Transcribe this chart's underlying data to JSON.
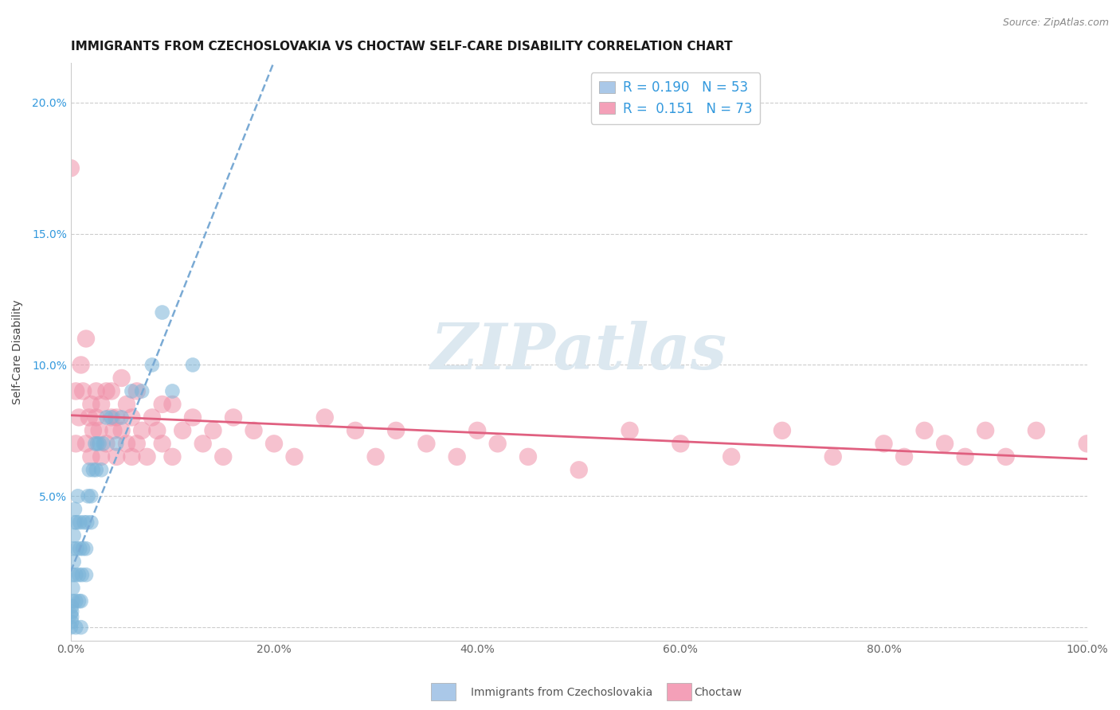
{
  "title": "IMMIGRANTS FROM CZECHOSLOVAKIA VS CHOCTAW SELF-CARE DISABILITY CORRELATION CHART",
  "source": "Source: ZipAtlas.com",
  "ylabel": "Self-Care Disability",
  "xlim": [
    0,
    1.0
  ],
  "ylim": [
    -0.005,
    0.215
  ],
  "xtick_vals": [
    0.0,
    0.2,
    0.4,
    0.6,
    0.8,
    1.0
  ],
  "xtick_labels": [
    "0.0%",
    "20.0%",
    "40.0%",
    "60.0%",
    "80.0%",
    "100.0%"
  ],
  "ytick_vals": [
    0.0,
    0.05,
    0.1,
    0.15,
    0.2
  ],
  "ytick_labels": [
    "",
    "5.0%",
    "10.0%",
    "15.0%",
    "20.0%"
  ],
  "blue_color": "#7ab4d8",
  "pink_color": "#f090a8",
  "blue_line_color": "#7aaad4",
  "pink_line_color": "#e06080",
  "grid_color": "#cccccc",
  "background": "#ffffff",
  "watermark": "ZIPatlas",
  "legend_blue_label": "R = 0.190   N = 53",
  "legend_pink_label": "R =  0.151   N = 73",
  "bottom_label_blue": "Immigrants from Czechoslovakia",
  "bottom_label_pink": "Choctaw",
  "blue_x": [
    0.0,
    0.0,
    0.001,
    0.001,
    0.001,
    0.001,
    0.002,
    0.002,
    0.002,
    0.003,
    0.003,
    0.003,
    0.004,
    0.004,
    0.005,
    0.005,
    0.005,
    0.006,
    0.006,
    0.007,
    0.008,
    0.008,
    0.009,
    0.009,
    0.01,
    0.01,
    0.011,
    0.012,
    0.013,
    0.015,
    0.015,
    0.016,
    0.017,
    0.018,
    0.02,
    0.02,
    0.022,
    0.024,
    0.025,
    0.026,
    0.028,
    0.03,
    0.032,
    0.035,
    0.04,
    0.045,
    0.05,
    0.06,
    0.07,
    0.08,
    0.09,
    0.1,
    0.12
  ],
  "blue_y": [
    0.0,
    0.005,
    0.002,
    0.004,
    0.006,
    0.008,
    0.01,
    0.015,
    0.02,
    0.025,
    0.03,
    0.035,
    0.04,
    0.045,
    0.0,
    0.01,
    0.02,
    0.03,
    0.04,
    0.05,
    0.01,
    0.02,
    0.03,
    0.04,
    0.0,
    0.01,
    0.02,
    0.03,
    0.04,
    0.02,
    0.03,
    0.04,
    0.05,
    0.06,
    0.04,
    0.05,
    0.06,
    0.07,
    0.06,
    0.07,
    0.07,
    0.06,
    0.07,
    0.08,
    0.08,
    0.07,
    0.08,
    0.09,
    0.09,
    0.1,
    0.12,
    0.09,
    0.1
  ],
  "pink_x": [
    0.0,
    0.005,
    0.005,
    0.008,
    0.01,
    0.012,
    0.015,
    0.015,
    0.018,
    0.02,
    0.02,
    0.022,
    0.025,
    0.025,
    0.028,
    0.03,
    0.03,
    0.035,
    0.035,
    0.04,
    0.04,
    0.042,
    0.045,
    0.045,
    0.05,
    0.05,
    0.055,
    0.055,
    0.06,
    0.06,
    0.065,
    0.065,
    0.07,
    0.075,
    0.08,
    0.085,
    0.09,
    0.09,
    0.1,
    0.1,
    0.11,
    0.12,
    0.13,
    0.14,
    0.15,
    0.16,
    0.18,
    0.2,
    0.22,
    0.25,
    0.28,
    0.3,
    0.32,
    0.35,
    0.38,
    0.4,
    0.42,
    0.45,
    0.5,
    0.55,
    0.6,
    0.65,
    0.7,
    0.75,
    0.8,
    0.82,
    0.84,
    0.86,
    0.88,
    0.9,
    0.92,
    0.95,
    1.0
  ],
  "pink_y": [
    0.175,
    0.07,
    0.09,
    0.08,
    0.1,
    0.09,
    0.07,
    0.11,
    0.08,
    0.085,
    0.065,
    0.075,
    0.08,
    0.09,
    0.075,
    0.065,
    0.085,
    0.07,
    0.09,
    0.08,
    0.09,
    0.075,
    0.065,
    0.08,
    0.075,
    0.095,
    0.07,
    0.085,
    0.08,
    0.065,
    0.09,
    0.07,
    0.075,
    0.065,
    0.08,
    0.075,
    0.07,
    0.085,
    0.065,
    0.085,
    0.075,
    0.08,
    0.07,
    0.075,
    0.065,
    0.08,
    0.075,
    0.07,
    0.065,
    0.08,
    0.075,
    0.065,
    0.075,
    0.07,
    0.065,
    0.075,
    0.07,
    0.065,
    0.06,
    0.075,
    0.07,
    0.065,
    0.075,
    0.065,
    0.07,
    0.065,
    0.075,
    0.07,
    0.065,
    0.075,
    0.065,
    0.075,
    0.07
  ]
}
